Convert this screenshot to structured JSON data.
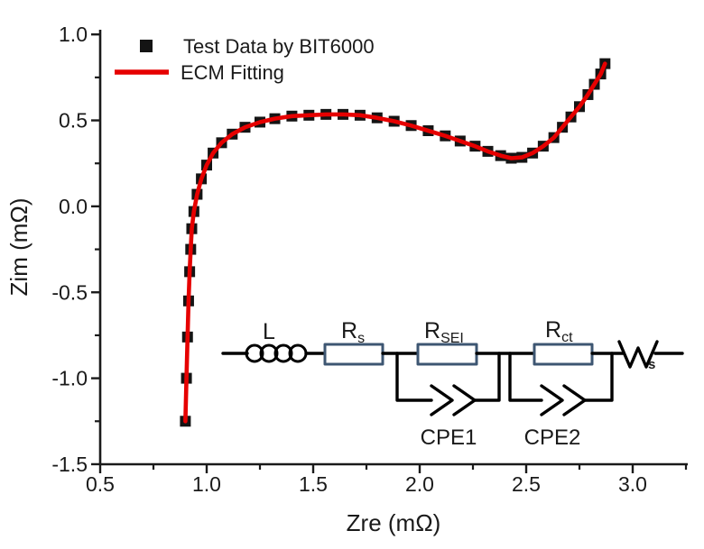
{
  "figure": {
    "background": "#ffffff"
  },
  "colors": {
    "axis": "#1a1a1a",
    "data_marker": "#141414",
    "fit_line": "#e60000",
    "wire": "#000000",
    "resistor_border": "#3d5672",
    "resistor_fill": "#ffffff"
  },
  "axes": {
    "x": {
      "label": "Zre (mΩ)",
      "major_ticks": [
        0.5,
        1.0,
        1.5,
        2.0,
        2.5,
        3.0
      ],
      "tick_labels": [
        "0.5",
        "1.0",
        "1.5",
        "2.0",
        "2.5",
        "3.0"
      ],
      "minor_ticks": [
        0.75,
        1.25,
        1.75,
        2.25,
        2.75,
        3.25
      ],
      "range": [
        0.5,
        3.25
      ]
    },
    "y": {
      "label": "Zim (mΩ)",
      "major_ticks": [
        1.0,
        0.5,
        0.0,
        -0.5,
        -1.0,
        -1.5
      ],
      "tick_labels": [
        "1.0",
        "0.5",
        "0.0",
        "-0.5",
        "-1.0",
        "-1.5"
      ],
      "minor_ticks": [
        0.75,
        0.25,
        -0.25,
        -0.75,
        -1.25
      ],
      "range": [
        -1.5,
        1.03
      ]
    }
  },
  "legend": {
    "entries": [
      {
        "label": "Test Data by BIT6000",
        "marker": "square",
        "color": "#141414"
      },
      {
        "label": "ECM Fitting",
        "marker": "line",
        "color": "#e60000"
      }
    ]
  },
  "chart_data": {
    "type": "scatter",
    "title": "",
    "xlabel": "Zre (mΩ)",
    "ylabel": "Zim (mΩ)",
    "xlim": [
      0.5,
      3.25
    ],
    "ylim": [
      -1.5,
      1.0
    ],
    "grid": false,
    "legend_position": "top-left",
    "series": [
      {
        "name": "Test Data by BIT6000",
        "plot": "scatter",
        "marker": "square",
        "color": "#141414",
        "points": [
          [
            0.9,
            -1.25
          ],
          [
            0.905,
            -1.0
          ],
          [
            0.91,
            -0.76
          ],
          [
            0.915,
            -0.55
          ],
          [
            0.92,
            -0.38
          ],
          [
            0.925,
            -0.25
          ],
          [
            0.93,
            -0.13
          ],
          [
            0.94,
            -0.03
          ],
          [
            0.955,
            0.07
          ],
          [
            0.975,
            0.16
          ],
          [
            1.0,
            0.24
          ],
          [
            1.03,
            0.31
          ],
          [
            1.07,
            0.37
          ],
          [
            1.12,
            0.42
          ],
          [
            1.18,
            0.46
          ],
          [
            1.25,
            0.49
          ],
          [
            1.32,
            0.51
          ],
          [
            1.4,
            0.525
          ],
          [
            1.48,
            0.53
          ],
          [
            1.56,
            0.535
          ],
          [
            1.64,
            0.535
          ],
          [
            1.72,
            0.53
          ],
          [
            1.8,
            0.515
          ],
          [
            1.88,
            0.495
          ],
          [
            1.96,
            0.47
          ],
          [
            2.04,
            0.44
          ],
          [
            2.12,
            0.41
          ],
          [
            2.19,
            0.38
          ],
          [
            2.26,
            0.35
          ],
          [
            2.32,
            0.32
          ],
          [
            2.38,
            0.295
          ],
          [
            2.43,
            0.28
          ],
          [
            2.48,
            0.285
          ],
          [
            2.53,
            0.31
          ],
          [
            2.58,
            0.35
          ],
          [
            2.63,
            0.4
          ],
          [
            2.67,
            0.46
          ],
          [
            2.71,
            0.52
          ],
          [
            2.75,
            0.58
          ],
          [
            2.79,
            0.65
          ],
          [
            2.82,
            0.71
          ],
          [
            2.85,
            0.77
          ],
          [
            2.87,
            0.83
          ]
        ]
      },
      {
        "name": "ECM Fitting",
        "plot": "line",
        "color": "#e60000",
        "uses_points_of": 0
      }
    ]
  },
  "circuit": {
    "labels": {
      "inductor": "L",
      "rs_main": "R",
      "rs_sub": "s",
      "rsei_main": "R",
      "rsei_sub": "SEI",
      "rct_main": "R",
      "rct_sub": "ct",
      "cpe1": "CPE1",
      "cpe2": "CPE2",
      "warburg_main": "W",
      "warburg_sub": "s"
    }
  }
}
